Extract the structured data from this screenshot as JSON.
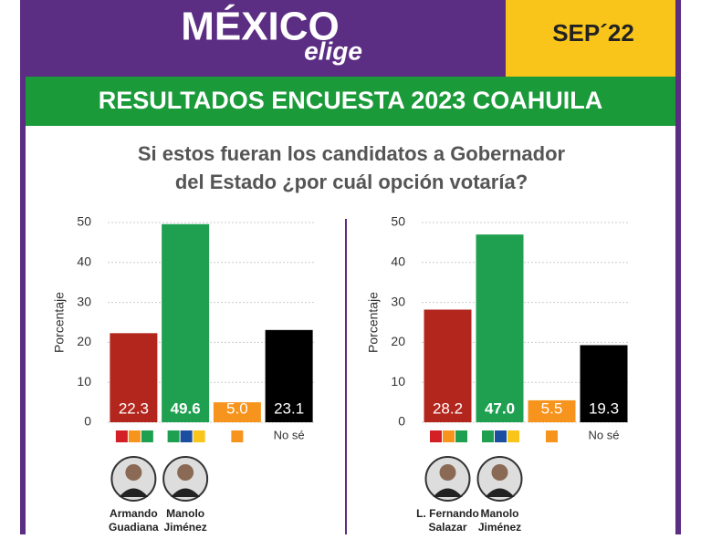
{
  "header": {
    "logo": "MÉXICO",
    "logo_sub": "elige",
    "date": "SEP´22",
    "banner": "RESULTADOS ENCUESTA 2023 COAHUILA",
    "question": [
      "Si estos fueran los candidatos a Gobernador",
      "del Estado ¿por cuál opción votaría?"
    ]
  },
  "chart_data": [
    {
      "type": "bar",
      "ylabel": "Porcentaje",
      "categories": [
        null,
        null,
        null,
        "No sé"
      ],
      "values": [
        22.3,
        49.6,
        5.0,
        23.1
      ],
      "value_labels": [
        "22.3",
        "49.6",
        "5.0",
        "23.1"
      ],
      "colors": [
        "#b3261e",
        "#1fa050",
        "#f7941d",
        "#000000"
      ],
      "ylim": [
        0,
        50
      ],
      "yticks": [
        0,
        10,
        20,
        30,
        40,
        50
      ],
      "grid": true,
      "candidates": [
        [
          "Armando",
          "Guadiana"
        ],
        [
          "Manolo",
          "Jiménez"
        ]
      ]
    },
    {
      "type": "bar",
      "ylabel": "Porcentaje",
      "categories": [
        null,
        null,
        null,
        "No sé"
      ],
      "values": [
        28.2,
        47.0,
        5.5,
        19.3
      ],
      "value_labels": [
        "28.2",
        "47.0",
        "5.5",
        "19.3"
      ],
      "colors": [
        "#b3261e",
        "#1fa050",
        "#f7941d",
        "#000000"
      ],
      "ylim": [
        0,
        50
      ],
      "yticks": [
        0,
        10,
        20,
        30,
        40,
        50
      ],
      "grid": true,
      "candidates": [
        [
          "L. Fernando",
          "Salazar"
        ],
        [
          "Manolo",
          "Jiménez"
        ]
      ]
    }
  ]
}
